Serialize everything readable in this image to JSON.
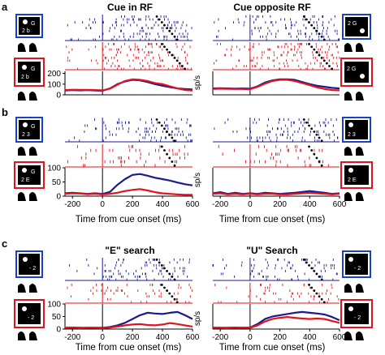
{
  "figure": {
    "panel_labels": [
      "a",
      "b",
      "c"
    ],
    "titles": {
      "a_left": "Cue in RF",
      "a_right": "Cue opposite RF",
      "c_left": "\"E\" search",
      "c_right": "\"U\" Search"
    },
    "xlabel": "Time from cue onset (ms)",
    "ylabel": "sp/s",
    "colors": {
      "blue": "#1a1a8c",
      "red": "#e0141e",
      "black": "#000000"
    }
  },
  "chart_data": [
    {
      "id": "a-left",
      "type": "line",
      "title": "Cue in RF",
      "xlim": [
        -250,
        600
      ],
      "ylim": [
        0,
        220
      ],
      "yticks": [
        0,
        100,
        200
      ],
      "xticks": [],
      "x": [
        -250,
        -200,
        -150,
        -100,
        -50,
        0,
        50,
        100,
        150,
        200,
        250,
        300,
        350,
        400,
        450,
        500,
        550,
        600
      ],
      "series": [
        {
          "color": "blue",
          "values": [
            40,
            45,
            42,
            44,
            40,
            38,
            60,
            100,
            125,
            140,
            135,
            120,
            100,
            85,
            72,
            60,
            55,
            50
          ]
        },
        {
          "color": "red",
          "values": [
            45,
            48,
            46,
            47,
            45,
            42,
            58,
            95,
            130,
            145,
            140,
            130,
            110,
            100,
            80,
            60,
            45,
            40
          ]
        }
      ]
    },
    {
      "id": "a-right",
      "type": "line",
      "title": "Cue opposite RF",
      "xlim": [
        -250,
        600
      ],
      "ylim": [
        0,
        220
      ],
      "xticks": [],
      "x": [
        -250,
        -200,
        -150,
        -100,
        -50,
        0,
        50,
        100,
        150,
        200,
        250,
        300,
        350,
        400,
        450,
        500,
        550,
        600
      ],
      "series": [
        {
          "color": "blue",
          "values": [
            60,
            62,
            60,
            58,
            60,
            58,
            80,
            115,
            135,
            145,
            145,
            140,
            120,
            100,
            85,
            75,
            65,
            60
          ]
        },
        {
          "color": "red",
          "values": [
            55,
            58,
            56,
            55,
            55,
            52,
            75,
            105,
            130,
            140,
            140,
            130,
            110,
            90,
            70,
            55,
            45,
            42
          ]
        }
      ]
    },
    {
      "id": "b-left",
      "type": "line",
      "xlim": [
        -250,
        600
      ],
      "ylim": [
        0,
        100
      ],
      "yticks": [
        0,
        50,
        100
      ],
      "xticks": [
        -200,
        0,
        200,
        400,
        600
      ],
      "x": [
        -250,
        -200,
        -150,
        -100,
        -50,
        0,
        50,
        100,
        150,
        200,
        250,
        300,
        350,
        400,
        450,
        500,
        550,
        600
      ],
      "series": [
        {
          "color": "blue",
          "values": [
            10,
            12,
            10,
            8,
            10,
            8,
            15,
            40,
            60,
            75,
            78,
            72,
            65,
            60,
            55,
            48,
            42,
            38
          ]
        },
        {
          "color": "red",
          "values": [
            8,
            10,
            9,
            7,
            8,
            6,
            8,
            12,
            18,
            22,
            25,
            20,
            14,
            10,
            8,
            6,
            5,
            5
          ]
        }
      ]
    },
    {
      "id": "b-right",
      "type": "line",
      "xlim": [
        -250,
        600
      ],
      "ylim": [
        0,
        100
      ],
      "xticks": [
        -200,
        0,
        200,
        400,
        600
      ],
      "x": [
        -250,
        -200,
        -150,
        -100,
        -50,
        0,
        50,
        100,
        150,
        200,
        250,
        300,
        350,
        400,
        450,
        500,
        550,
        600
      ],
      "series": [
        {
          "color": "blue",
          "values": [
            10,
            14,
            8,
            12,
            8,
            10,
            8,
            12,
            10,
            8,
            10,
            12,
            15,
            18,
            15,
            12,
            8,
            10
          ]
        },
        {
          "color": "red",
          "values": [
            8,
            10,
            6,
            8,
            6,
            8,
            6,
            8,
            8,
            6,
            6,
            8,
            10,
            12,
            10,
            8,
            6,
            8
          ]
        }
      ]
    },
    {
      "id": "c-left",
      "type": "line",
      "title": "\"E\" search",
      "xlim": [
        -250,
        600
      ],
      "ylim": [
        0,
        100
      ],
      "yticks": [
        0,
        50,
        100
      ],
      "xticks": [
        -200,
        0,
        200,
        400,
        600
      ],
      "x": [
        -250,
        -200,
        -150,
        -100,
        -50,
        0,
        50,
        100,
        150,
        200,
        250,
        300,
        350,
        400,
        450,
        500,
        550,
        600
      ],
      "series": [
        {
          "color": "blue",
          "values": [
            5,
            6,
            5,
            5,
            5,
            5,
            8,
            15,
            25,
            40,
            55,
            65,
            62,
            60,
            65,
            68,
            55,
            40
          ]
        },
        {
          "color": "red",
          "values": [
            5,
            5,
            4,
            5,
            5,
            4,
            6,
            10,
            15,
            18,
            20,
            16,
            15,
            18,
            24,
            20,
            15,
            10
          ]
        }
      ]
    },
    {
      "id": "c-right",
      "type": "line",
      "title": "\"U\" Search",
      "xlim": [
        -250,
        600
      ],
      "ylim": [
        0,
        100
      ],
      "xticks": [
        -200,
        0,
        200,
        400,
        600
      ],
      "x": [
        -250,
        -200,
        -150,
        -100,
        -50,
        0,
        50,
        100,
        150,
        200,
        250,
        300,
        350,
        400,
        450,
        500,
        550,
        600
      ],
      "series": [
        {
          "color": "blue",
          "values": [
            5,
            5,
            5,
            6,
            5,
            6,
            20,
            40,
            50,
            55,
            60,
            65,
            68,
            65,
            62,
            58,
            48,
            35
          ]
        },
        {
          "color": "red",
          "values": [
            5,
            5,
            4,
            5,
            5,
            5,
            15,
            30,
            40,
            45,
            48,
            45,
            42,
            40,
            42,
            40,
            32,
            25
          ]
        }
      ]
    }
  ]
}
